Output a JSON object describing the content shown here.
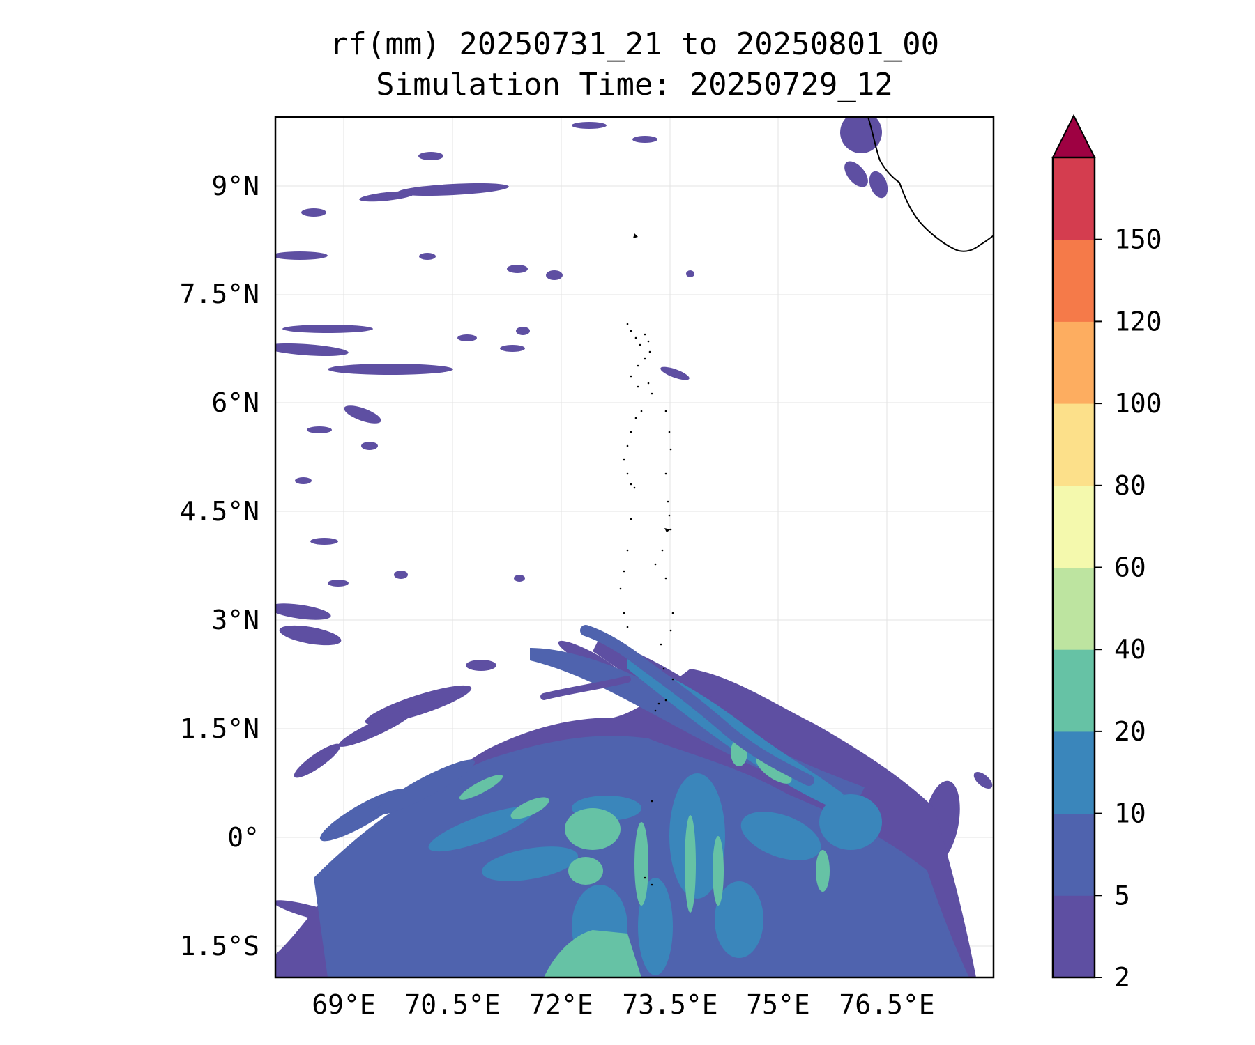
{
  "title": {
    "line1": "rf(mm) 20250731_21 to 20250801_00",
    "line2": "Simulation Time: 20250729_12"
  },
  "map": {
    "lon_ticks": [
      "69°E",
      "70.5°E",
      "72°E",
      "73.5°E",
      "75°E",
      "76.5°E"
    ],
    "lat_ticks": [
      "9°N",
      "7.5°N",
      "6°N",
      "4.5°N",
      "3°N",
      "1.5°N",
      "0°",
      "1.5°S"
    ],
    "lon_range": [
      68.1,
      78.0
    ],
    "lat_range": [
      -1.9,
      9.95
    ],
    "colorscale": "Spectral_r"
  },
  "colorbar": {
    "levels": [
      "2",
      "5",
      "10",
      "20",
      "40",
      "60",
      "80",
      "100",
      "120",
      "150"
    ],
    "colors": [
      "#5e4fa2",
      "#4f63ae",
      "#3a86bb",
      "#66c2a5",
      "#bde4a0",
      "#f4f9ad",
      "#fce08a",
      "#fdad60",
      "#f57a49",
      "#d43d4f"
    ],
    "extend_color": "#9e0142"
  }
}
